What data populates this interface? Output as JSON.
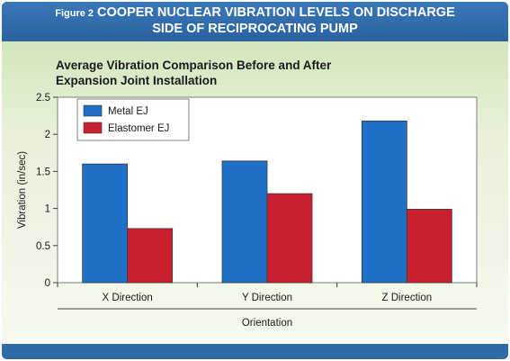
{
  "figure": {
    "label": "Figure 2",
    "title_line1": "COOPER NUCLEAR VIBRATION LEVELS ON DISCHARGE",
    "title_line2": "SIDE OF RECIPROCATING PUMP"
  },
  "chart_data": {
    "type": "bar",
    "title_line1": "Average Vibration Comparison Before and After",
    "title_line2": "Expansion Joint Installation",
    "categories": [
      "X Direction",
      "Y Direction",
      "Z Direction"
    ],
    "series": [
      {
        "name": "Metal EJ",
        "values": [
          1.6,
          1.64,
          2.18
        ],
        "color": "#1f6fc6"
      },
      {
        "name": "Elastomer EJ",
        "values": [
          0.73,
          1.2,
          0.99
        ],
        "color": "#c8202f"
      }
    ],
    "xlabel": "Orientation",
    "ylabel": "Vibration (in/sec)",
    "ylim": [
      0,
      2.5
    ],
    "yticks": [
      0,
      0.5,
      1,
      1.5,
      2,
      2.5
    ],
    "ytick_labels": [
      "0",
      "0.5",
      "1",
      "1.5",
      "2",
      "2.5"
    ],
    "grid": false,
    "legend": "top-left"
  }
}
